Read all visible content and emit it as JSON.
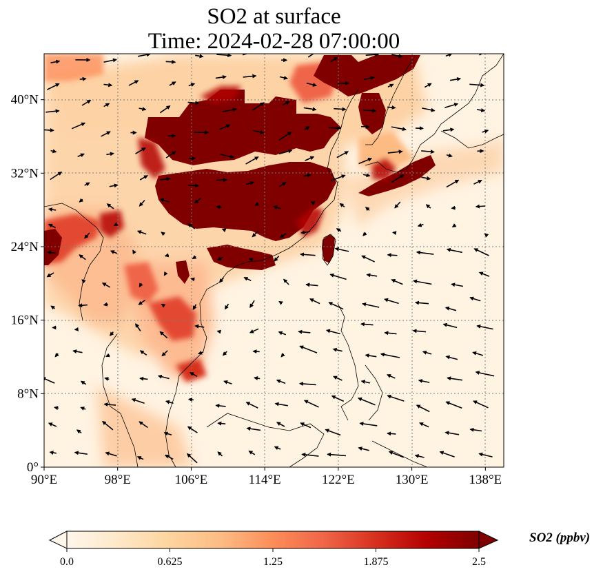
{
  "figure": {
    "title_line1": "SO2 at surface",
    "title_line2": "Time: 2024-02-28 07:00:00"
  },
  "map": {
    "region": "East and Southeast Asia",
    "projection": "PlateCarree",
    "lon_range": [
      90,
      140
    ],
    "lat_range": [
      0,
      45
    ],
    "gridlines": true,
    "coastlines": true,
    "wind_vectors": true,
    "lon_ticks": [
      {
        "value": 90,
        "label": "90°E"
      },
      {
        "value": 98,
        "label": "98°E"
      },
      {
        "value": 106,
        "label": "106°E"
      },
      {
        "value": 114,
        "label": "114°E"
      },
      {
        "value": 122,
        "label": "122°E"
      },
      {
        "value": 130,
        "label": "130°E"
      },
      {
        "value": 138,
        "label": "138°E"
      }
    ],
    "lat_ticks": [
      {
        "value": 0,
        "label": "0°"
      },
      {
        "value": 8,
        "label": "8°N"
      },
      {
        "value": 16,
        "label": "16°N"
      },
      {
        "value": 24,
        "label": "24°N"
      },
      {
        "value": 32,
        "label": "32°N"
      },
      {
        "value": 40,
        "label": "40°N"
      }
    ],
    "high_concentration_areas": [
      {
        "name": "North China Plain",
        "level": 2.5
      },
      {
        "name": "Sichuan Basin",
        "level": 2.5
      },
      {
        "name": "Central China",
        "level": 2.5
      },
      {
        "name": "Northeast China",
        "level": 2.5
      },
      {
        "name": "Southern Japan",
        "level": 2.5
      },
      {
        "name": "Taiwan",
        "level": 2.5
      },
      {
        "name": "Bangladesh / NE India",
        "level": 2.2
      },
      {
        "name": "Northern Vietnam",
        "level": 2.2
      },
      {
        "name": "Cambodia",
        "level": 1.8
      },
      {
        "name": "Korea",
        "level": 1.9
      }
    ]
  },
  "colorbar": {
    "label": "SO2 (ppbv)",
    "min": 0.0,
    "max": 2.5,
    "extend": "both",
    "colormap": "OrRd",
    "colors": [
      "#fff7ec",
      "#fee8c8",
      "#fdd49e",
      "#fdbb84",
      "#fc8d59",
      "#ef6548",
      "#d7301f",
      "#b30000",
      "#7f0000"
    ],
    "ticks": [
      "0.0",
      "0.625",
      "1.25",
      "1.875",
      "2.5"
    ]
  }
}
